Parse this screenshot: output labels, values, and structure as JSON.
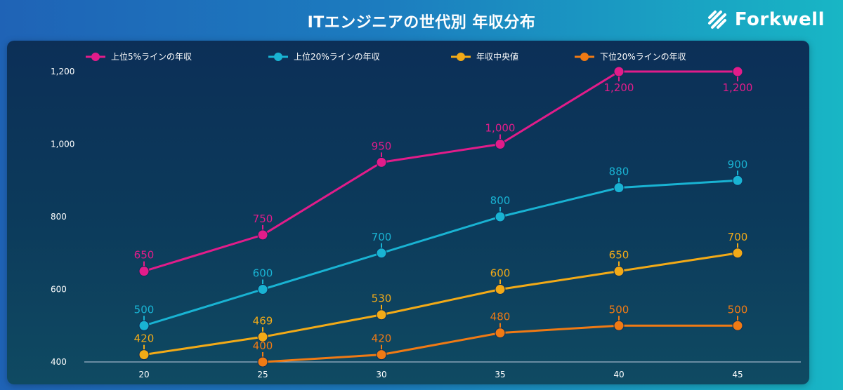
{
  "header": {
    "title": "ITエンジニアの世代別 年収分布",
    "brand": "Forkwell"
  },
  "chart_data": {
    "type": "line",
    "title": "ITエンジニアの世代別 年収分布",
    "categories": [
      "20",
      "25",
      "30",
      "35",
      "40",
      "45"
    ],
    "ylim": [
      400,
      1200
    ],
    "yticks": [
      400,
      600,
      800,
      1000,
      1200
    ],
    "ytick_labels": [
      "400",
      "600",
      "800",
      "1,000",
      "1,200"
    ],
    "grid": false,
    "legend_position": "top-left",
    "series": [
      {
        "name": "上位5%ラインの年収",
        "color": "#e21c8a",
        "values": [
          650,
          750,
          950,
          1000,
          1200,
          1200
        ],
        "labels": [
          "650",
          "750",
          "950",
          "1,000",
          "1,200",
          "1,200"
        ],
        "label_position": [
          "above",
          "above",
          "above",
          "above",
          "below",
          "below"
        ]
      },
      {
        "name": "上位20%ラインの年収",
        "color": "#19b3d3",
        "values": [
          500,
          600,
          700,
          800,
          880,
          900
        ],
        "labels": [
          "500",
          "600",
          "700",
          "800",
          "880",
          "900"
        ],
        "label_position": [
          "above",
          "above",
          "above",
          "above",
          "above",
          "above"
        ]
      },
      {
        "name": "年収中央値",
        "color": "#f2aa17",
        "values": [
          420,
          469,
          530,
          600,
          650,
          700
        ],
        "labels": [
          "420",
          "469",
          "530",
          "600",
          "650",
          "700"
        ],
        "label_position": [
          "above",
          "above",
          "above",
          "above",
          "above",
          "above"
        ]
      },
      {
        "name": "下位20%ラインの年収",
        "color": "#f07a14",
        "values": [
          null,
          400,
          420,
          480,
          500,
          500
        ],
        "labels": [
          "",
          "400",
          "420",
          "480",
          "500",
          "500"
        ],
        "label_position": [
          "above",
          "above",
          "above",
          "above",
          "above",
          "above"
        ]
      }
    ]
  }
}
